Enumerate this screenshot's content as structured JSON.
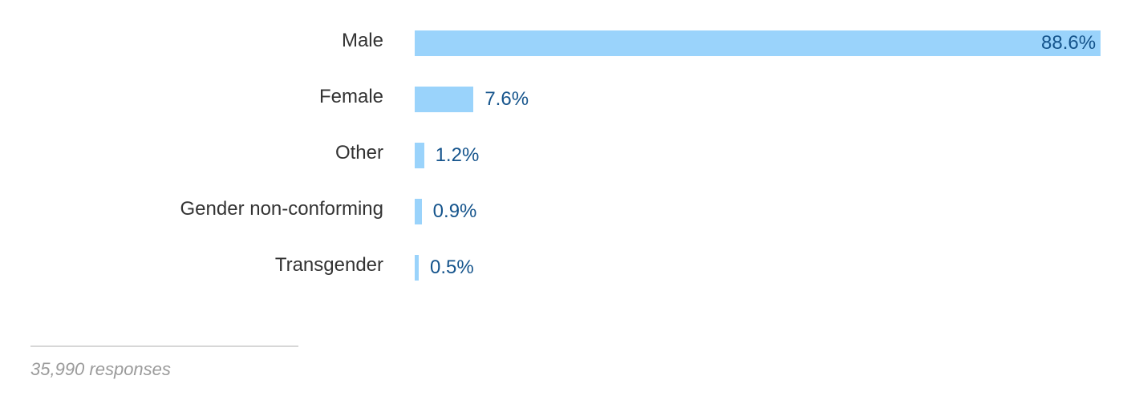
{
  "chart_data": {
    "type": "bar",
    "orientation": "horizontal",
    "categories": [
      "Male",
      "Female",
      "Other",
      "Gender non-conforming",
      "Transgender"
    ],
    "values": [
      88.6,
      7.6,
      1.2,
      0.9,
      0.5
    ],
    "value_labels": [
      "88.6%",
      "7.6%",
      "1.2%",
      "0.9%",
      "0.5%"
    ],
    "xlim": [
      0,
      88.6
    ],
    "grid": false,
    "bar_color": "#9ad3fb",
    "value_label_color": "#15548c"
  },
  "footer": {
    "responses": "35,990 responses"
  }
}
